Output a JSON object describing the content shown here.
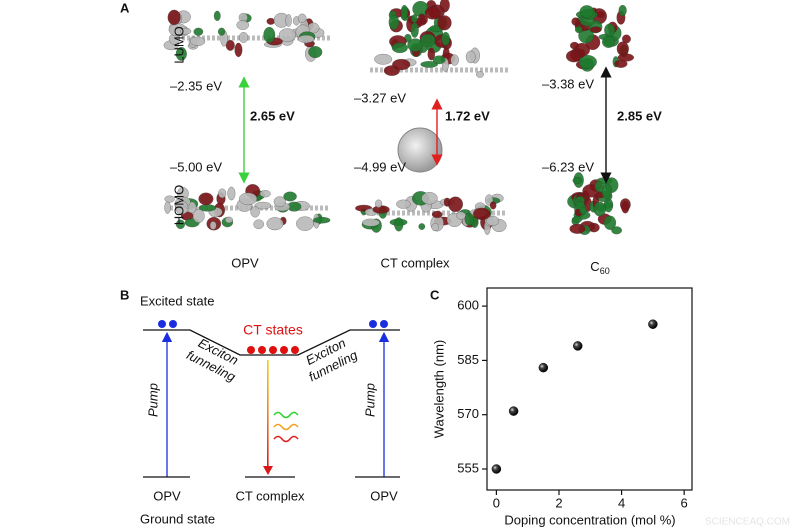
{
  "panel_a": {
    "label": "A",
    "orbital_labels": {
      "lumo": "LUMO",
      "homo": "HOMO"
    },
    "columns": [
      {
        "name": "OPV",
        "lumo": "–2.35 eV",
        "homo": "–5.00 eV",
        "gap": "2.65 eV"
      },
      {
        "name": "CT complex",
        "lumo": "–3.27 eV",
        "homo": "–4.99 eV",
        "gap": "1.72 eV"
      },
      {
        "name": "C",
        "name_subscript": "60",
        "lumo": "–3.38 eV",
        "homo": "–6.23 eV",
        "gap": "2.85 eV"
      }
    ]
  },
  "panel_b": {
    "label": "B",
    "excited_state": "Excited state",
    "ground_state": "Ground state",
    "ct_states": "CT states",
    "funneling_left": [
      "Exciton",
      "funneling"
    ],
    "funneling_right": [
      "Exciton",
      "funneling"
    ],
    "pump_labels": [
      "Pump",
      "Pump"
    ],
    "bottom_labels": [
      "OPV",
      "CT complex",
      "OPV"
    ]
  },
  "chart_data": {
    "type": "scatter",
    "label": "C",
    "xlabel": "Doping concentration (mol %)",
    "ylabel": "Wavelength (nm)",
    "x": [
      0,
      0.55,
      1.5,
      2.6,
      5
    ],
    "values": [
      555,
      571,
      583,
      589,
      595
    ],
    "color": "#111111",
    "xlim": [
      -0.3,
      6.25
    ],
    "ylim": [
      549.2,
      605
    ],
    "xticks": [
      0,
      2,
      4,
      6
    ],
    "yticks": [
      555,
      570,
      585,
      600
    ]
  },
  "watermark": "SCIENCEAQ.COM"
}
